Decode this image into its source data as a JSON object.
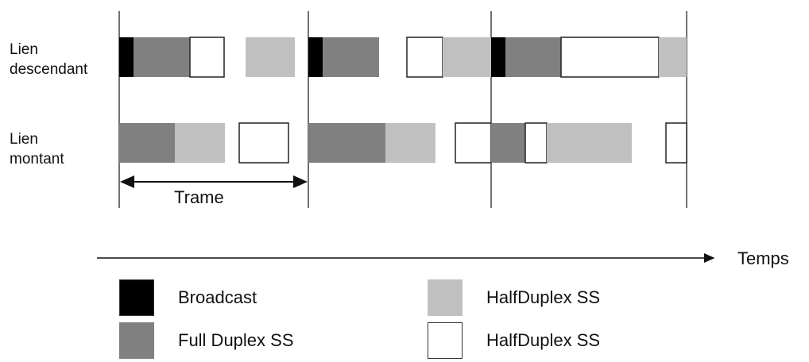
{
  "rows": {
    "downlink": {
      "line1": "Lien",
      "line2": "descendant"
    },
    "uplink": {
      "line1": "Lien",
      "line2": "montant"
    }
  },
  "frame_label": "Trame",
  "time_axis_label": "Temps",
  "colors": {
    "broadcast": "#000000",
    "full_duplex": "#808080",
    "half_duplex_light": "#c0c0c0",
    "half_duplex_white": "#ffffff"
  },
  "legend": [
    {
      "label": "Broadcast",
      "type": "broadcast"
    },
    {
      "label": "Full Duplex SS",
      "type": "full_duplex"
    },
    {
      "label": "HalfDuplex SS",
      "type": "half_duplex_light"
    },
    {
      "label": "HalfDuplex SS",
      "type": "half_duplex_white"
    }
  ]
}
